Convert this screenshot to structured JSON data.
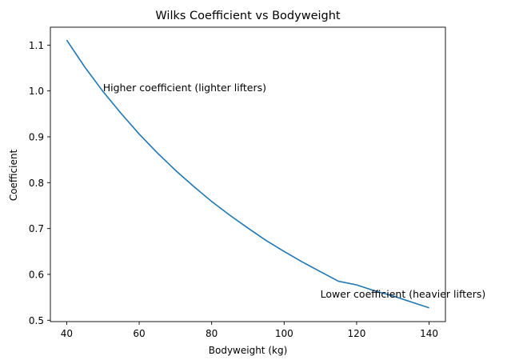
{
  "chart_data": {
    "type": "line",
    "title": "Wilks Coefficient vs Bodyweight",
    "xlabel": "Bodyweight (kg)",
    "ylabel": "Coefficient",
    "xlim": [
      35.5,
      144.5
    ],
    "ylim": [
      0.497,
      1.139
    ],
    "xticks": [
      40,
      60,
      80,
      100,
      120,
      140
    ],
    "yticks": [
      0.5,
      0.6,
      0.7,
      0.8,
      0.9,
      1.0,
      1.1
    ],
    "ytick_labels": [
      "0.5",
      "0.6",
      "0.7",
      "0.8",
      "0.9",
      "1.0",
      "1.1"
    ],
    "grid": false,
    "line_color": "#1f77b4",
    "series": [
      {
        "x": [
          40,
          45,
          50,
          55,
          60,
          65,
          70,
          75,
          80,
          85,
          90,
          95,
          100,
          105,
          110,
          115,
          120,
          125,
          130,
          135,
          140
        ],
        "y": [
          1.111,
          1.052,
          0.999,
          0.951,
          0.906,
          0.865,
          0.827,
          0.792,
          0.759,
          0.729,
          0.701,
          0.674,
          0.65,
          0.627,
          0.606,
          0.585,
          0.577,
          0.564,
          0.553,
          0.54,
          0.527
        ]
      }
    ],
    "annotations": [
      {
        "text": "Higher coefficient (lighter lifters)",
        "x": 50,
        "y": 1.0
      },
      {
        "text": "Lower coefficient (heavier lifters)",
        "x": 110,
        "y": 0.55
      }
    ]
  }
}
